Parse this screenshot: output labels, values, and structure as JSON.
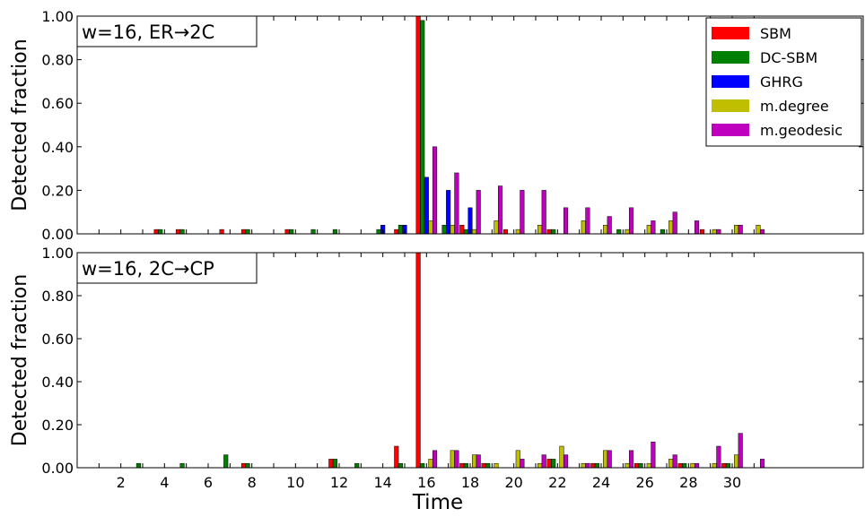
{
  "chart_data": [
    {
      "type": "bar",
      "panel_label": "w=16, ER→2C",
      "ylabel": "Detected fraction",
      "xlabel": "",
      "ylim": [
        0,
        1.0
      ],
      "yticks": [
        "0.00",
        "0.20",
        "0.40",
        "0.60",
        "0.80",
        "1.00"
      ],
      "x": [
        1,
        2,
        3,
        4,
        5,
        6,
        7,
        8,
        9,
        10,
        11,
        12,
        13,
        14,
        15,
        16,
        17,
        18,
        19,
        20,
        21,
        22,
        23,
        24,
        25,
        26,
        27,
        28,
        29,
        30,
        31
      ],
      "legend": {
        "placement": "top-right"
      },
      "series": [
        {
          "name": "SBM",
          "color": "#ff0000",
          "values": [
            0,
            0,
            0,
            0.02,
            0.02,
            0,
            0.02,
            0.02,
            0,
            0.02,
            0,
            0,
            0,
            0,
            0.02,
            1.0,
            0,
            0.04,
            0,
            0.02,
            0,
            0.02,
            0,
            0,
            0,
            0,
            0,
            0,
            0.02,
            0,
            0
          ]
        },
        {
          "name": "DC-SBM",
          "color": "#008000",
          "values": [
            0,
            0,
            0,
            0.02,
            0.02,
            0,
            0,
            0.02,
            0,
            0.02,
            0.02,
            0.02,
            0,
            0.02,
            0.04,
            0.98,
            0.04,
            0.02,
            0,
            0,
            0,
            0.02,
            0,
            0,
            0.02,
            0,
            0.02,
            0,
            0,
            0,
            0
          ]
        },
        {
          "name": "GHRG",
          "color": "#0000ff",
          "values": [
            0,
            0,
            0,
            0,
            0,
            0,
            0,
            0,
            0,
            0,
            0,
            0,
            0,
            0.04,
            0.04,
            0.26,
            0.2,
            0.12,
            0,
            0,
            0,
            0,
            0,
            0,
            0,
            0,
            0,
            0,
            0,
            0,
            0
          ]
        },
        {
          "name": "m.degree",
          "color": "#bfbf00",
          "values": [
            0,
            0,
            0,
            0,
            0,
            0,
            0,
            0,
            0,
            0,
            0,
            0,
            0,
            0,
            0,
            0.06,
            0.04,
            0.02,
            0.06,
            0.02,
            0.04,
            0,
            0.06,
            0.04,
            0.02,
            0.04,
            0.06,
            0,
            0.02,
            0.04,
            0.04
          ]
        },
        {
          "name": "m.geodesic",
          "color": "#bf00bf",
          "values": [
            0,
            0,
            0,
            0,
            0,
            0,
            0,
            0,
            0,
            0,
            0,
            0,
            0,
            0,
            0,
            0.4,
            0.28,
            0.2,
            0.22,
            0.2,
            0.2,
            0.12,
            0.12,
            0.08,
            0.12,
            0.06,
            0.1,
            0.06,
            0.02,
            0.04,
            0.02
          ]
        }
      ]
    },
    {
      "type": "bar",
      "panel_label": "w=16, 2C→CP",
      "ylabel": "Detected fraction",
      "xlabel": "Time",
      "ylim": [
        0,
        1.0
      ],
      "yticks": [
        "0.00",
        "0.20",
        "0.40",
        "0.60",
        "0.80",
        "1.00"
      ],
      "x": [
        1,
        2,
        3,
        4,
        5,
        6,
        7,
        8,
        9,
        10,
        11,
        12,
        13,
        14,
        15,
        16,
        17,
        18,
        19,
        20,
        21,
        22,
        23,
        24,
        25,
        26,
        27,
        28,
        29,
        30,
        31
      ],
      "xtick_labels": [
        "2",
        "4",
        "6",
        "8",
        "10",
        "12",
        "14",
        "16",
        "18",
        "20",
        "22",
        "24",
        "26",
        "28",
        "30"
      ],
      "series": [
        {
          "name": "SBM",
          "color": "#ff0000",
          "values": [
            0,
            0,
            0,
            0,
            0,
            0,
            0,
            0.02,
            0,
            0,
            0,
            0.04,
            0,
            0,
            0.1,
            1.0,
            0,
            0.02,
            0.02,
            0,
            0,
            0.04,
            0,
            0.02,
            0,
            0.02,
            0,
            0.02,
            0,
            0.02,
            0
          ]
        },
        {
          "name": "DC-SBM",
          "color": "#008000",
          "values": [
            0,
            0,
            0.02,
            0,
            0.02,
            0,
            0.06,
            0.02,
            0,
            0,
            0,
            0.04,
            0.02,
            0,
            0.02,
            0.02,
            0,
            0.02,
            0.02,
            0,
            0,
            0.04,
            0,
            0.02,
            0,
            0.02,
            0,
            0.02,
            0,
            0.02,
            0
          ]
        },
        {
          "name": "GHRG",
          "color": "#0000ff",
          "values": [
            0,
            0,
            0,
            0,
            0,
            0,
            0,
            0,
            0,
            0,
            0,
            0,
            0,
            0,
            0,
            0,
            0,
            0,
            0,
            0,
            0,
            0,
            0,
            0,
            0,
            0,
            0,
            0,
            0,
            0,
            0
          ]
        },
        {
          "name": "m.degree",
          "color": "#bfbf00",
          "values": [
            0,
            0,
            0,
            0,
            0,
            0,
            0,
            0,
            0,
            0,
            0,
            0,
            0,
            0,
            0,
            0.04,
            0.08,
            0.06,
            0.02,
            0.08,
            0.02,
            0.1,
            0.02,
            0.08,
            0.02,
            0.02,
            0.04,
            0.02,
            0.02,
            0.06,
            0
          ]
        },
        {
          "name": "m.geodesic",
          "color": "#bf00bf",
          "values": [
            0,
            0,
            0,
            0,
            0,
            0,
            0,
            0,
            0,
            0,
            0,
            0,
            0,
            0,
            0,
            0.08,
            0.08,
            0.06,
            0,
            0.04,
            0.06,
            0.06,
            0.02,
            0.08,
            0.08,
            0.12,
            0.06,
            0.02,
            0.1,
            0.16,
            0.04
          ]
        }
      ]
    }
  ]
}
